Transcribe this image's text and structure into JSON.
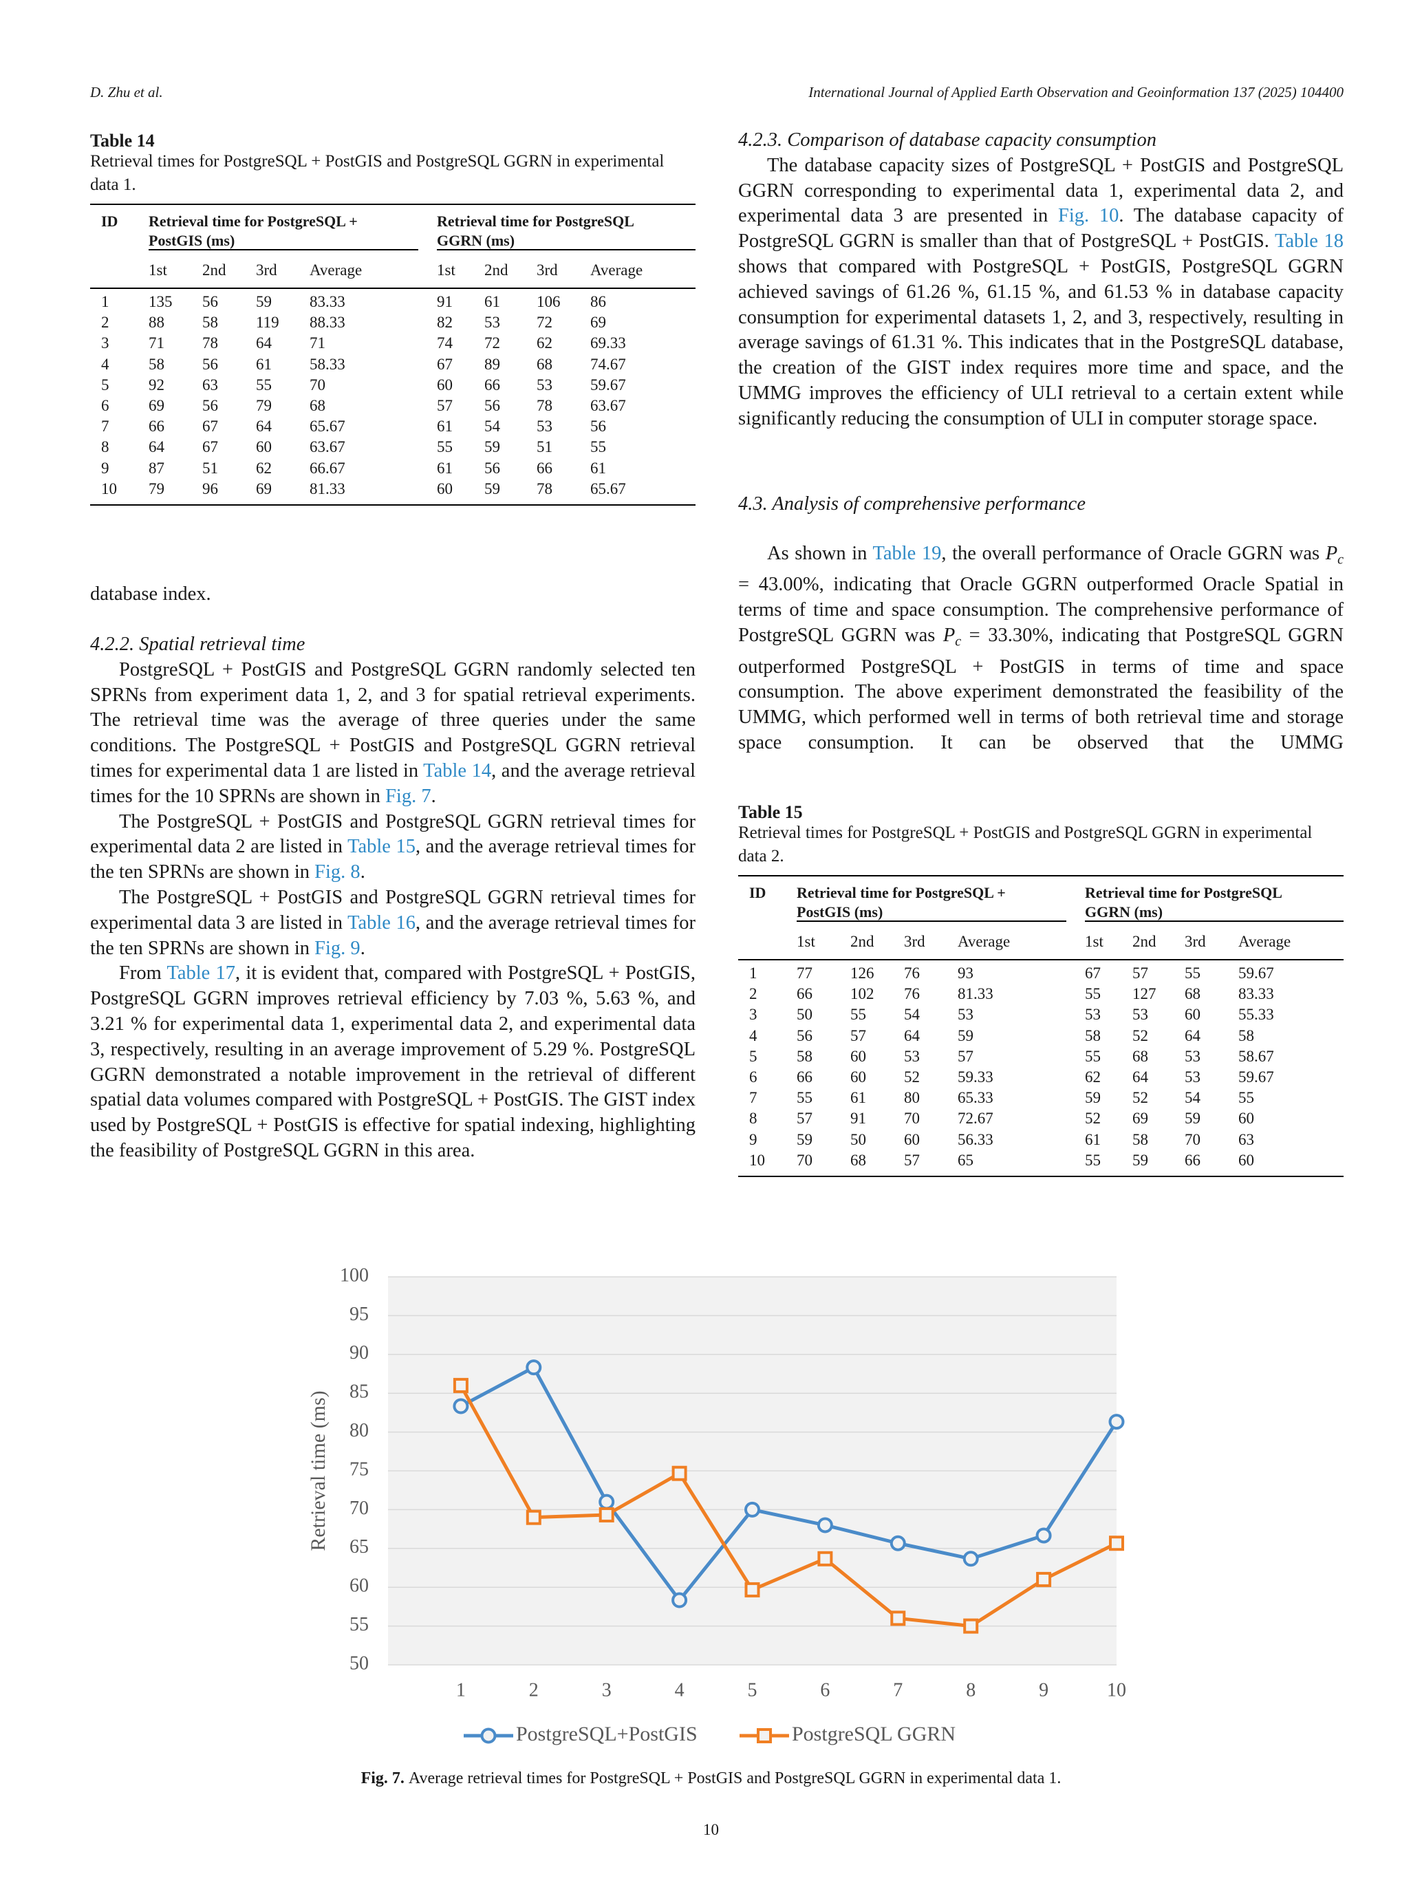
{
  "header": {
    "left": "D. Zhu et al.",
    "right": "International Journal of Applied Earth Observation and Geoinformation 137 (2025) 104400"
  },
  "tables": [
    {
      "label": "Table 14",
      "caption": "Retrieval times for PostgreSQL + PostGIS and PostgreSQL GGRN in experimental data 1.",
      "id_header": "ID",
      "group_headers": [
        "Retrieval time for PostgreSQL + PostGIS (ms)",
        "Retrieval time for PostgreSQL GGRN (ms)"
      ],
      "columns": [
        "1st",
        "2nd",
        "3rd",
        "Average",
        "1st",
        "2nd",
        "3rd",
        "Average"
      ],
      "rows": [
        [
          1,
          135,
          56,
          59,
          83.33,
          91,
          61,
          106,
          86
        ],
        [
          2,
          88,
          58,
          119,
          88.33,
          82,
          53,
          72,
          69
        ],
        [
          3,
          71,
          78,
          64,
          71,
          74,
          72,
          62,
          69.33
        ],
        [
          4,
          58,
          56,
          61,
          58.33,
          67,
          89,
          68,
          74.67
        ],
        [
          5,
          92,
          63,
          55,
          70,
          60,
          66,
          53,
          59.67
        ],
        [
          6,
          69,
          56,
          79,
          68,
          57,
          56,
          78,
          63.67
        ],
        [
          7,
          66,
          67,
          64,
          65.67,
          61,
          54,
          53,
          56
        ],
        [
          8,
          64,
          67,
          60,
          63.67,
          55,
          59,
          51,
          55
        ],
        [
          9,
          87,
          51,
          62,
          66.67,
          61,
          56,
          66,
          61
        ],
        [
          10,
          79,
          96,
          69,
          81.33,
          60,
          59,
          78,
          65.67
        ]
      ]
    },
    {
      "label": "Table 15",
      "caption": "Retrieval times for PostgreSQL + PostGIS and PostgreSQL GGRN in experimental data 2.",
      "id_header": "ID",
      "group_headers": [
        "Retrieval time for PostgreSQL + PostGIS (ms)",
        "Retrieval time for PostgreSQL GGRN (ms)"
      ],
      "columns": [
        "1st",
        "2nd",
        "3rd",
        "Average",
        "1st",
        "2nd",
        "3rd",
        "Average"
      ],
      "rows": [
        [
          1,
          77,
          126,
          76,
          93,
          67,
          57,
          55,
          59.67
        ],
        [
          2,
          66,
          102,
          76,
          81.33,
          55,
          127,
          68,
          83.33
        ],
        [
          3,
          50,
          55,
          54,
          53,
          53,
          53,
          60,
          55.33
        ],
        [
          4,
          56,
          57,
          64,
          59,
          58,
          52,
          64,
          58
        ],
        [
          5,
          58,
          60,
          53,
          57,
          55,
          68,
          53,
          58.67
        ],
        [
          6,
          66,
          60,
          52,
          59.33,
          62,
          64,
          53,
          59.67
        ],
        [
          7,
          55,
          61,
          80,
          65.33,
          59,
          52,
          54,
          55
        ],
        [
          8,
          57,
          91,
          70,
          72.67,
          52,
          69,
          59,
          60
        ],
        [
          9,
          59,
          50,
          60,
          56.33,
          61,
          58,
          70,
          63
        ],
        [
          10,
          70,
          68,
          57,
          65,
          55,
          59,
          66,
          60
        ]
      ]
    }
  ],
  "left_column": {
    "lead": "database index.",
    "heading": "4.2.2. Spatial retrieval time",
    "paragraphs": [
      [
        "PostgreSQL + PostGIS and PostgreSQL GGRN randomly selected ten SPRNs from experiment data 1, 2, and 3 for spatial retrieval experiments. The retrieval time was the average of three queries under the same conditions. The PostgreSQL + PostGIS and PostgreSQL GGRN retrieval times for experimental data 1 are listed in ",
        {
          "ref": "Table 14"
        },
        ", and the average retrieval times for the 10 SPRNs are shown in ",
        {
          "ref": "Fig. 7"
        },
        "."
      ],
      [
        "The PostgreSQL + PostGIS and PostgreSQL GGRN retrieval times for experimental data 2 are listed in ",
        {
          "ref": "Table 15"
        },
        ", and the average retrieval times for the ten SPRNs are shown in ",
        {
          "ref": "Fig. 8"
        },
        "."
      ],
      [
        "The PostgreSQL + PostGIS and PostgreSQL GGRN retrieval times for experimental data 3 are listed in ",
        {
          "ref": "Table 16"
        },
        ", and the average retrieval times for the ten SPRNs are shown in ",
        {
          "ref": "Fig. 9"
        },
        "."
      ],
      [
        "From ",
        {
          "ref": "Table 17"
        },
        ", it is evident that, compared with PostgreSQL + PostGIS, PostgreSQL GGRN improves retrieval efficiency by 7.03 %, 5.63 %, and 3.21 % for experimental data 1, experimental data 2, and experimental data 3, respectively, resulting in an average improvement of 5.29 %. PostgreSQL GGRN demonstrated a notable improvement in the retrieval of different spatial data volumes compared with PostgreSQL + PostGIS. The GIST index used by PostgreSQL + PostGIS is effective for spatial indexing, highlighting the feasibility of PostgreSQL GGRN in this area."
      ]
    ]
  },
  "right_column": {
    "heading_1": "4.2.3. Comparison of database capacity consumption",
    "paragraph_1": [
      "The database capacity sizes of PostgreSQL + PostGIS and PostgreSQL GGRN corresponding to experimental data 1, experimental data 2, and experimental data 3 are presented in ",
      {
        "ref": "Fig. 10"
      },
      ". The database capacity of PostgreSQL GGRN is smaller than that of PostgreSQL + PostGIS. ",
      {
        "ref": "Table 18"
      },
      " shows that compared with PostgreSQL + PostGIS, PostgreSQL GGRN achieved savings of 61.26 %, 61.15 %, and 61.53 % in database capacity consumption for experimental datasets 1, 2, and 3, respectively, resulting in average savings of 61.31 %. This indicates that in the PostgreSQL database, the creation of the GIST index requires more time and space, and the UMMG improves the efficiency of ULI retrieval to a certain extent while significantly reducing the consumption of ULI in computer storage space."
    ],
    "heading_2": "4.3. Analysis of comprehensive performance",
    "paragraph_2": [
      "As shown in ",
      {
        "ref": "Table 19"
      },
      ", the overall performance of Oracle GGRN was ",
      {
        "var": "P",
        "sub": "c"
      },
      " = 43.00%, indicating that Oracle GGRN outperformed Oracle Spatial in terms of time and space consumption. The comprehensive performance of PostgreSQL GGRN was ",
      {
        "var": "P",
        "sub": "c"
      },
      " = 33.30%, indicating that PostgreSQL GGRN outperformed PostgreSQL + PostGIS in terms of time and space consumption. The above experiment demonstrated the feasibility of the UMMG, which performed well in terms of both retrieval time and storage space consumption. It can be observed that the UMMG"
    ]
  },
  "chart_data": {
    "type": "line",
    "y_label": "Retrieval time (ms)",
    "categories": [
      "1",
      "2",
      "3",
      "4",
      "5",
      "6",
      "7",
      "8",
      "9",
      "10"
    ],
    "series": [
      {
        "name": "PostgreSQL+PostGIS",
        "color": "#4a8bc9",
        "marker": "circle",
        "values": [
          83.33,
          88.33,
          71,
          58.33,
          70,
          68,
          65.67,
          63.67,
          66.67,
          81.33
        ]
      },
      {
        "name": "PostgreSQL GGRN",
        "color": "#f07f23",
        "marker": "square",
        "values": [
          86,
          69,
          69.33,
          74.67,
          59.67,
          63.67,
          56,
          55,
          61,
          65.67
        ]
      }
    ],
    "ylim": [
      50,
      100
    ],
    "yticks": [
      50,
      55,
      60,
      65,
      70,
      75,
      80,
      85,
      90,
      95,
      100
    ],
    "grid": true,
    "legend": "bottom"
  },
  "figure": {
    "label": "Fig. 7.",
    "caption": "Average retrieval times for PostgreSQL + PostGIS and PostgreSQL GGRN in experimental data 1."
  },
  "page_number": "10"
}
